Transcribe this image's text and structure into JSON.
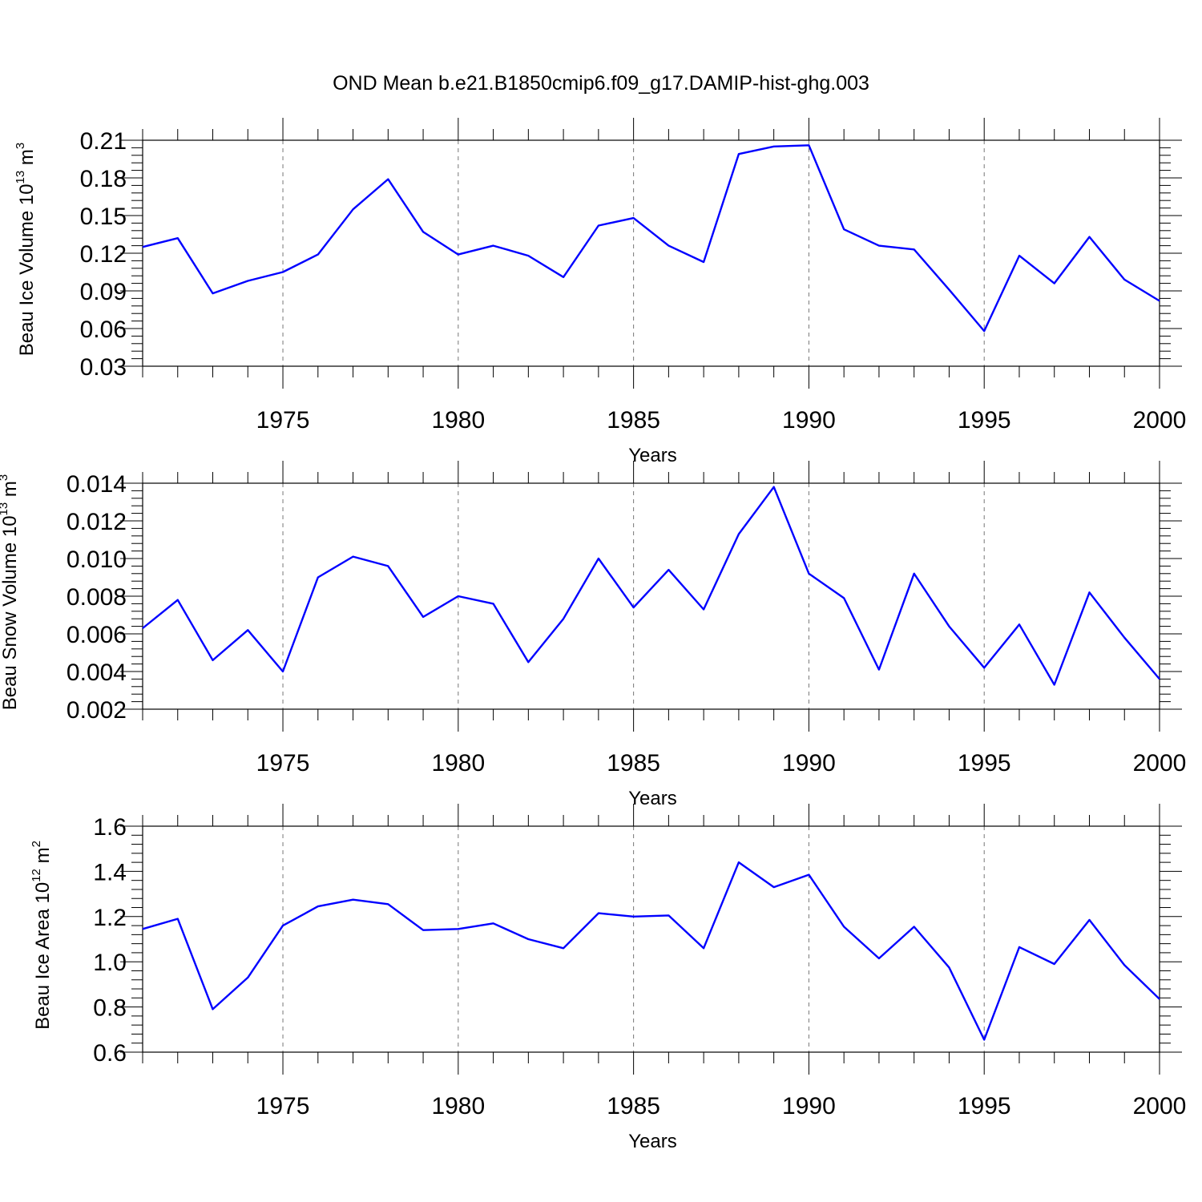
{
  "figure": {
    "title": "OND Mean b.e21.B1850cmip6.f09_g17.DAMIP-hist-ghg.003",
    "line_color": "#0000ff",
    "frame_color": "#000000",
    "grid_color": "#777777"
  },
  "chart_data": [
    {
      "type": "line",
      "xlabel": "Years",
      "ylabel": {
        "main": "Beau Ice Volume 10",
        "exp": "13",
        "unit": " m",
        "unit_exp": "3"
      },
      "xlim": [
        1971,
        2000
      ],
      "ylim": [
        0.03,
        0.21
      ],
      "xticks": [
        1975,
        1980,
        1985,
        1990,
        1995,
        2000
      ],
      "xtick_labels": [
        "1975",
        "1980",
        "1985",
        "1990",
        "1995",
        "2000"
      ],
      "yticks": [
        0.03,
        0.06,
        0.09,
        0.12,
        0.15,
        0.18,
        0.21
      ],
      "ytick_labels": [
        "0.03",
        "0.06",
        "0.09",
        "0.12",
        "0.15",
        "0.18",
        "0.21"
      ],
      "grid": "vertical dashed at major x ticks",
      "x": [
        1971,
        1972,
        1973,
        1974,
        1975,
        1976,
        1977,
        1978,
        1979,
        1980,
        1981,
        1982,
        1983,
        1984,
        1985,
        1986,
        1987,
        1988,
        1989,
        1990,
        1991,
        1992,
        1993,
        1994,
        1995,
        1996,
        1997,
        1998,
        1999,
        2000
      ],
      "y": [
        0.125,
        0.132,
        0.088,
        0.098,
        0.105,
        0.119,
        0.155,
        0.179,
        0.137,
        0.119,
        0.126,
        0.118,
        0.101,
        0.142,
        0.148,
        0.126,
        0.113,
        0.199,
        0.205,
        0.206,
        0.139,
        0.126,
        0.123,
        0.091,
        0.058,
        0.118,
        0.096,
        0.133,
        0.099,
        0.082
      ]
    },
    {
      "type": "line",
      "xlabel": "Years",
      "ylabel": {
        "main": "Beau Snow Volume 10",
        "exp": "13",
        "unit": " m",
        "unit_exp": "3"
      },
      "xlim": [
        1971,
        2000
      ],
      "ylim": [
        0.002,
        0.014
      ],
      "xticks": [
        1975,
        1980,
        1985,
        1990,
        1995,
        2000
      ],
      "xtick_labels": [
        "1975",
        "1980",
        "1985",
        "1990",
        "1995",
        "2000"
      ],
      "yticks": [
        0.002,
        0.004,
        0.006,
        0.008,
        0.01,
        0.012,
        0.014
      ],
      "ytick_labels": [
        "0.002",
        "0.004",
        "0.006",
        "0.008",
        "0.010",
        "0.012",
        "0.014"
      ],
      "grid": "vertical dashed at major x ticks",
      "x": [
        1971,
        1972,
        1973,
        1974,
        1975,
        1976,
        1977,
        1978,
        1979,
        1980,
        1981,
        1982,
        1983,
        1984,
        1985,
        1986,
        1987,
        1988,
        1989,
        1990,
        1991,
        1992,
        1993,
        1994,
        1995,
        1996,
        1997,
        1998,
        1999,
        2000
      ],
      "y": [
        0.0063,
        0.0078,
        0.0046,
        0.0062,
        0.004,
        0.009,
        0.0101,
        0.0096,
        0.0069,
        0.008,
        0.0076,
        0.0045,
        0.0068,
        0.01,
        0.0074,
        0.0094,
        0.0073,
        0.0113,
        0.0138,
        0.0092,
        0.0079,
        0.0041,
        0.0092,
        0.0064,
        0.0042,
        0.0065,
        0.0033,
        0.0082,
        0.0058,
        0.0036
      ]
    },
    {
      "type": "line",
      "xlabel": "Years",
      "ylabel": {
        "main": "Beau Ice Area 10",
        "exp": "12",
        "unit": " m",
        "unit_exp": "2"
      },
      "xlim": [
        1971,
        2000
      ],
      "ylim": [
        0.6,
        1.6
      ],
      "xticks": [
        1975,
        1980,
        1985,
        1990,
        1995,
        2000
      ],
      "xtick_labels": [
        "1975",
        "1980",
        "1985",
        "1990",
        "1995",
        "2000"
      ],
      "yticks": [
        0.6,
        0.8,
        1.0,
        1.2,
        1.4,
        1.6
      ],
      "ytick_labels": [
        "0.6",
        "0.8",
        "1.0",
        "1.2",
        "1.4",
        "1.6"
      ],
      "grid": "vertical dashed at major x ticks",
      "x": [
        1971,
        1972,
        1973,
        1974,
        1975,
        1976,
        1977,
        1978,
        1979,
        1980,
        1981,
        1982,
        1983,
        1984,
        1985,
        1986,
        1987,
        1988,
        1989,
        1990,
        1991,
        1992,
        1993,
        1994,
        1995,
        1996,
        1997,
        1998,
        1999,
        2000
      ],
      "y": [
        1.145,
        1.19,
        0.79,
        0.93,
        1.16,
        1.245,
        1.275,
        1.255,
        1.14,
        1.145,
        1.17,
        1.1,
        1.06,
        1.215,
        1.2,
        1.205,
        1.06,
        1.44,
        1.33,
        1.385,
        1.155,
        1.015,
        1.155,
        0.975,
        0.655,
        1.065,
        0.99,
        1.185,
        0.985,
        0.835
      ]
    }
  ]
}
